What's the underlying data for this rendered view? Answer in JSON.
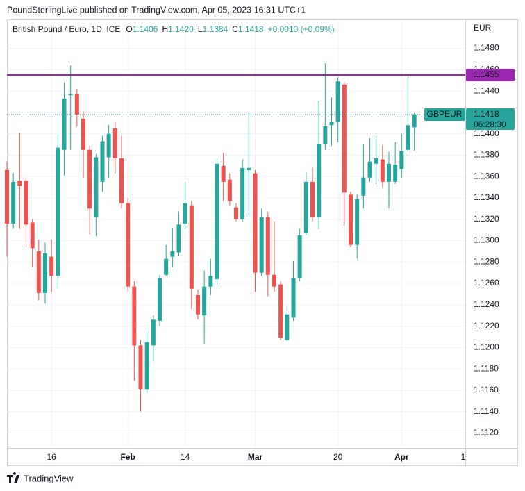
{
  "header": {
    "publisher": "PoundSterlingLive published on TradingView.com, Apr 05, 2023 16:31 UTC+1"
  },
  "footer": {
    "brand": "TradingView"
  },
  "chart_data": {
    "type": "candlestick",
    "title": "British Pound / Euro, 1D, ICE",
    "ohlc_legend": [
      {
        "key": "O",
        "value": "1.1406"
      },
      {
        "key": "H",
        "value": "1.1420"
      },
      {
        "key": "L",
        "value": "1.1384"
      },
      {
        "key": "C",
        "value": "1.1418"
      }
    ],
    "change": "+0.0010 (+0.09%)",
    "currency": "EUR",
    "up_color": "#26a69a",
    "down_color": "#ef5350",
    "series": [
      {
        "name": "GBPEUR",
        "open": [
          1.1366,
          1.1316,
          1.1356,
          1.1356,
          1.1317,
          1.129,
          1.1251,
          1.1285,
          1.1267,
          1.1385,
          1.1436,
          1.1437,
          1.1414,
          1.1385,
          1.1322,
          1.1355,
          1.1378,
          1.1405,
          1.1377,
          1.1335,
          1.1257,
          1.1202,
          1.1161,
          1.1202,
          1.1225,
          1.1268,
          1.1285,
          1.1289,
          1.1316,
          1.1333,
          1.1249,
          1.123,
          1.1257,
          1.1264,
          1.137,
          1.1357,
          1.1331,
          1.132,
          1.1366,
          1.1363,
          1.127,
          1.1322,
          1.1268,
          1.1259,
          1.1207,
          1.1228,
          1.1265,
          1.1307,
          1.1355,
          1.1322,
          1.139,
          1.1408,
          1.1411,
          1.1446,
          1.1343,
          1.1296,
          1.1342,
          1.1359,
          1.1372,
          1.1376,
          1.1355,
          1.1355,
          1.1367,
          1.1385,
          1.1406
        ],
        "high": [
          1.1374,
          1.1363,
          1.1401,
          1.1359,
          1.132,
          1.1301,
          1.1298,
          1.1301,
          1.14,
          1.1448,
          1.1464,
          1.1442,
          1.1421,
          1.1389,
          1.1381,
          1.1398,
          1.1408,
          1.1411,
          1.1398,
          1.134,
          1.1262,
          1.1207,
          1.1215,
          1.123,
          1.1268,
          1.1296,
          1.1312,
          1.1327,
          1.1355,
          1.1337,
          1.1254,
          1.1272,
          1.1283,
          1.1377,
          1.1382,
          1.1363,
          1.1335,
          1.1376,
          1.142,
          1.1366,
          1.133,
          1.1327,
          1.1318,
          1.1262,
          1.1239,
          1.1281,
          1.1311,
          1.1364,
          1.1369,
          1.1431,
          1.1466,
          1.1434,
          1.1453,
          1.1448,
          1.1346,
          1.1343,
          1.139,
          1.1396,
          1.1398,
          1.1389,
          1.1383,
          1.1392,
          1.14,
          1.1453,
          1.142
        ],
        "low": [
          1.1285,
          1.1311,
          1.1311,
          1.1294,
          1.1275,
          1.1244,
          1.1241,
          1.1252,
          1.1255,
          1.1361,
          1.1385,
          1.1407,
          1.1359,
          1.1306,
          1.1304,
          1.1346,
          1.1359,
          1.1363,
          1.133,
          1.1252,
          1.1169,
          1.114,
          1.1157,
          1.1187,
          1.122,
          1.1267,
          1.1275,
          1.1286,
          1.1311,
          1.1236,
          1.1226,
          1.1203,
          1.1249,
          1.1259,
          1.1337,
          1.1333,
          1.1318,
          1.1318,
          1.1324,
          1.1252,
          1.1267,
          1.1248,
          1.1252,
          1.1207,
          1.1206,
          1.1225,
          1.1262,
          1.1305,
          1.1318,
          1.1311,
          1.1385,
          1.1389,
          1.1392,
          1.1314,
          1.1294,
          1.1283,
          1.133,
          1.1355,
          1.1353,
          1.135,
          1.133,
          1.1353,
          1.1359,
          1.1383,
          1.1384
        ],
        "close": [
          1.1316,
          1.1355,
          1.1351,
          1.1315,
          1.1293,
          1.1251,
          1.1288,
          1.1267,
          1.1387,
          1.1433,
          1.1437,
          1.1418,
          1.1385,
          1.133,
          1.1378,
          1.1393,
          1.14,
          1.1377,
          1.1335,
          1.1257,
          1.1202,
          1.1161,
          1.1205,
          1.1226,
          1.1265,
          1.1283,
          1.129,
          1.1315,
          1.1335,
          1.1255,
          1.1231,
          1.1257,
          1.1267,
          1.1372,
          1.1355,
          1.1337,
          1.132,
          1.1368,
          1.1368,
          1.127,
          1.1322,
          1.1268,
          1.1257,
          1.1209,
          1.1231,
          1.1265,
          1.1305,
          1.1355,
          1.1322,
          1.139,
          1.1407,
          1.1411,
          1.1449,
          1.1345,
          1.1296,
          1.1339,
          1.1359,
          1.1374,
          1.1377,
          1.1355,
          1.1372,
          1.1371,
          1.1384,
          1.1408,
          1.1418
        ],
        "last_label": "1.1418",
        "countdown": "06:28:30"
      }
    ],
    "hline": {
      "value": 1.1455,
      "label": "1.1455",
      "color": "#9c27b0"
    },
    "xlim": [
      0,
      72
    ],
    "xticks": [
      {
        "value": 7,
        "label": "16"
      },
      {
        "value": 19,
        "label": "Feb"
      },
      {
        "value": 28,
        "label": "14"
      },
      {
        "value": 39,
        "label": "Mar"
      },
      {
        "value": 52,
        "label": "20"
      },
      {
        "value": 62,
        "label": "Apr"
      },
      {
        "value": 72,
        "label": "1"
      }
    ],
    "ylim": [
      1.1106,
      1.1507
    ],
    "yticks": [
      {
        "value": 1.112,
        "label": "1.1120"
      },
      {
        "value": 1.114,
        "label": "1.1140"
      },
      {
        "value": 1.116,
        "label": "1.1160"
      },
      {
        "value": 1.118,
        "label": "1.1180"
      },
      {
        "value": 1.12,
        "label": "1.1200"
      },
      {
        "value": 1.122,
        "label": "1.1220"
      },
      {
        "value": 1.124,
        "label": "1.1240"
      },
      {
        "value": 1.126,
        "label": "1.1260"
      },
      {
        "value": 1.128,
        "label": "1.1280"
      },
      {
        "value": 1.13,
        "label": "1.1300"
      },
      {
        "value": 1.132,
        "label": "1.1320"
      },
      {
        "value": 1.134,
        "label": "1.1340"
      },
      {
        "value": 1.136,
        "label": "1.1360"
      },
      {
        "value": 1.138,
        "label": "1.1380"
      },
      {
        "value": 1.14,
        "label": "1.1400"
      },
      {
        "value": 1.142,
        "label": "1.1420"
      },
      {
        "value": 1.144,
        "label": "1.1440"
      },
      {
        "value": 1.146,
        "label": "1.1460"
      },
      {
        "value": 1.148,
        "label": "1.1480"
      }
    ],
    "grid": true
  }
}
